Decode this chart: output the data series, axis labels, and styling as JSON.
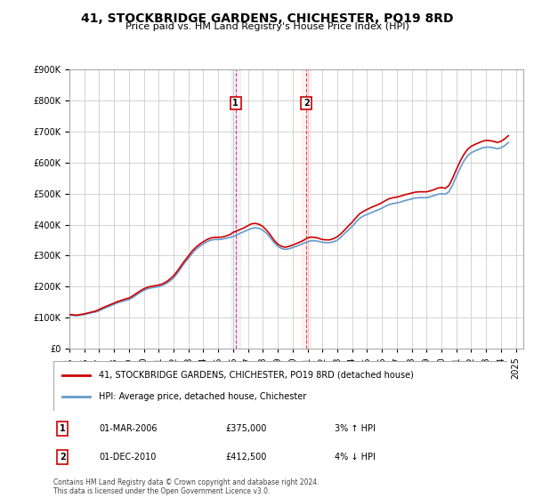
{
  "title": "41, STOCKBRIDGE GARDENS, CHICHESTER, PO19 8RD",
  "subtitle": "Price paid vs. HM Land Registry's House Price Index (HPI)",
  "ylabel": "",
  "ylim": [
    0,
    900000
  ],
  "yticks": [
    0,
    100000,
    200000,
    300000,
    400000,
    500000,
    600000,
    700000,
    800000,
    900000
  ],
  "ytick_labels": [
    "£0",
    "£100K",
    "£200K",
    "£300K",
    "£400K",
    "£500K",
    "£600K",
    "£700K",
    "£800K",
    "£900K"
  ],
  "xlim_start": 1995.0,
  "xlim_end": 2025.5,
  "background_color": "#ffffff",
  "plot_bg_color": "#ffffff",
  "grid_color": "#cccccc",
  "hpi_color": "#6699cc",
  "price_color": "#cc0000",
  "transaction1": {
    "year_num": 2006.17,
    "price": 375000,
    "label": "1",
    "date": "01-MAR-2006",
    "amount": "£375,000",
    "hpi_pct": "3%",
    "direction": "↑"
  },
  "transaction2": {
    "year_num": 2010.92,
    "price": 412500,
    "label": "2",
    "date": "01-DEC-2010",
    "amount": "£412,500",
    "hpi_pct": "4%",
    "direction": "↓"
  },
  "legend_line1": "41, STOCKBRIDGE GARDENS, CHICHESTER, PO19 8RD (detached house)",
  "legend_line2": "HPI: Average price, detached house, Chichester",
  "footer": "Contains HM Land Registry data © Crown copyright and database right 2024.\nThis data is licensed under the Open Government Licence v3.0.",
  "hpi_data_x": [
    1995.0,
    1995.25,
    1995.5,
    1995.75,
    1996.0,
    1996.25,
    1996.5,
    1996.75,
    1997.0,
    1997.25,
    1997.5,
    1997.75,
    1998.0,
    1998.25,
    1998.5,
    1998.75,
    1999.0,
    1999.25,
    1999.5,
    1999.75,
    2000.0,
    2000.25,
    2000.5,
    2000.75,
    2001.0,
    2001.25,
    2001.5,
    2001.75,
    2002.0,
    2002.25,
    2002.5,
    2002.75,
    2003.0,
    2003.25,
    2003.5,
    2003.75,
    2004.0,
    2004.25,
    2004.5,
    2004.75,
    2005.0,
    2005.25,
    2005.5,
    2005.75,
    2006.0,
    2006.25,
    2006.5,
    2006.75,
    2007.0,
    2007.25,
    2007.5,
    2007.75,
    2008.0,
    2008.25,
    2008.5,
    2008.75,
    2009.0,
    2009.25,
    2009.5,
    2009.75,
    2010.0,
    2010.25,
    2010.5,
    2010.75,
    2011.0,
    2011.25,
    2011.5,
    2011.75,
    2012.0,
    2012.25,
    2012.5,
    2012.75,
    2013.0,
    2013.25,
    2013.5,
    2013.75,
    2014.0,
    2014.25,
    2014.5,
    2014.75,
    2015.0,
    2015.25,
    2015.5,
    2015.75,
    2016.0,
    2016.25,
    2016.5,
    2016.75,
    2017.0,
    2017.25,
    2017.5,
    2017.75,
    2018.0,
    2018.25,
    2018.5,
    2018.75,
    2019.0,
    2019.25,
    2019.5,
    2019.75,
    2020.0,
    2020.25,
    2020.5,
    2020.75,
    2021.0,
    2021.25,
    2021.5,
    2021.75,
    2022.0,
    2022.25,
    2022.5,
    2022.75,
    2023.0,
    2023.25,
    2023.5,
    2023.75,
    2024.0,
    2024.25,
    2024.5
  ],
  "hpi_data_y": [
    108000,
    107000,
    106000,
    108000,
    110000,
    113000,
    116000,
    118000,
    122000,
    128000,
    133000,
    138000,
    143000,
    148000,
    152000,
    155000,
    158000,
    165000,
    173000,
    181000,
    188000,
    193000,
    196000,
    198000,
    200000,
    204000,
    210000,
    218000,
    228000,
    243000,
    260000,
    277000,
    292000,
    307000,
    320000,
    330000,
    338000,
    345000,
    350000,
    352000,
    352000,
    353000,
    356000,
    358000,
    362000,
    367000,
    373000,
    378000,
    383000,
    388000,
    390000,
    388000,
    382000,
    372000,
    358000,
    342000,
    330000,
    323000,
    320000,
    322000,
    326000,
    330000,
    335000,
    340000,
    345000,
    348000,
    348000,
    346000,
    343000,
    342000,
    342000,
    345000,
    350000,
    360000,
    372000,
    383000,
    394000,
    408000,
    420000,
    428000,
    433000,
    438000,
    443000,
    448000,
    453000,
    460000,
    465000,
    468000,
    470000,
    473000,
    477000,
    480000,
    483000,
    486000,
    487000,
    487000,
    487000,
    490000,
    494000,
    498000,
    500000,
    498000,
    506000,
    528000,
    556000,
    582000,
    605000,
    622000,
    632000,
    638000,
    643000,
    648000,
    650000,
    650000,
    648000,
    645000,
    648000,
    655000,
    665000
  ],
  "price_data_x": [
    1995.0,
    1995.25,
    1995.5,
    1995.75,
    1996.0,
    1996.25,
    1996.5,
    1996.75,
    1997.0,
    1997.25,
    1997.5,
    1997.75,
    1998.0,
    1998.25,
    1998.5,
    1998.75,
    1999.0,
    1999.25,
    1999.5,
    1999.75,
    2000.0,
    2000.25,
    2000.5,
    2000.75,
    2001.0,
    2001.25,
    2001.5,
    2001.75,
    2002.0,
    2002.25,
    2002.5,
    2002.75,
    2003.0,
    2003.25,
    2003.5,
    2003.75,
    2004.0,
    2004.25,
    2004.5,
    2004.75,
    2005.0,
    2005.25,
    2005.5,
    2005.75,
    2006.0,
    2006.25,
    2006.5,
    2006.75,
    2007.0,
    2007.25,
    2007.5,
    2007.75,
    2008.0,
    2008.25,
    2008.5,
    2008.75,
    2009.0,
    2009.25,
    2009.5,
    2009.75,
    2010.0,
    2010.25,
    2010.5,
    2010.75,
    2011.0,
    2011.25,
    2011.5,
    2011.75,
    2012.0,
    2012.25,
    2012.5,
    2012.75,
    2013.0,
    2013.25,
    2013.5,
    2013.75,
    2014.0,
    2014.25,
    2014.5,
    2014.75,
    2015.0,
    2015.25,
    2015.5,
    2015.75,
    2016.0,
    2016.25,
    2016.5,
    2016.75,
    2017.0,
    2017.25,
    2017.5,
    2017.75,
    2018.0,
    2018.25,
    2018.5,
    2018.75,
    2019.0,
    2019.25,
    2019.5,
    2019.75,
    2020.0,
    2020.25,
    2020.5,
    2020.75,
    2021.0,
    2021.25,
    2021.5,
    2021.75,
    2022.0,
    2022.25,
    2022.5,
    2022.75,
    2023.0,
    2023.25,
    2023.5,
    2023.75,
    2024.0,
    2024.25,
    2024.5
  ],
  "price_data_y": [
    110000,
    109000,
    108000,
    110000,
    112000,
    115000,
    118000,
    121000,
    126000,
    132000,
    137000,
    142000,
    147000,
    152000,
    156000,
    160000,
    163000,
    170000,
    178000,
    186000,
    193000,
    198000,
    201000,
    203000,
    205000,
    209000,
    215000,
    224000,
    235000,
    250000,
    267000,
    284000,
    299000,
    315000,
    327000,
    337000,
    345000,
    352000,
    357000,
    359000,
    359000,
    360000,
    363000,
    367000,
    375000,
    380000,
    385000,
    390000,
    397000,
    403000,
    404000,
    401000,
    394000,
    382000,
    367000,
    350000,
    337000,
    330000,
    327000,
    330000,
    334000,
    339000,
    344000,
    350000,
    357000,
    360000,
    359000,
    356000,
    352000,
    351000,
    351000,
    355000,
    361000,
    371000,
    383000,
    396000,
    408000,
    422000,
    435000,
    443000,
    449000,
    455000,
    460000,
    465000,
    471000,
    478000,
    484000,
    487000,
    489000,
    492000,
    496000,
    499000,
    502000,
    505000,
    506000,
    506000,
    506000,
    509000,
    513000,
    518000,
    520000,
    517000,
    526000,
    550000,
    578000,
    604000,
    626000,
    643000,
    653000,
    659000,
    664000,
    669000,
    672000,
    671000,
    669000,
    665000,
    669000,
    677000,
    687000
  ]
}
